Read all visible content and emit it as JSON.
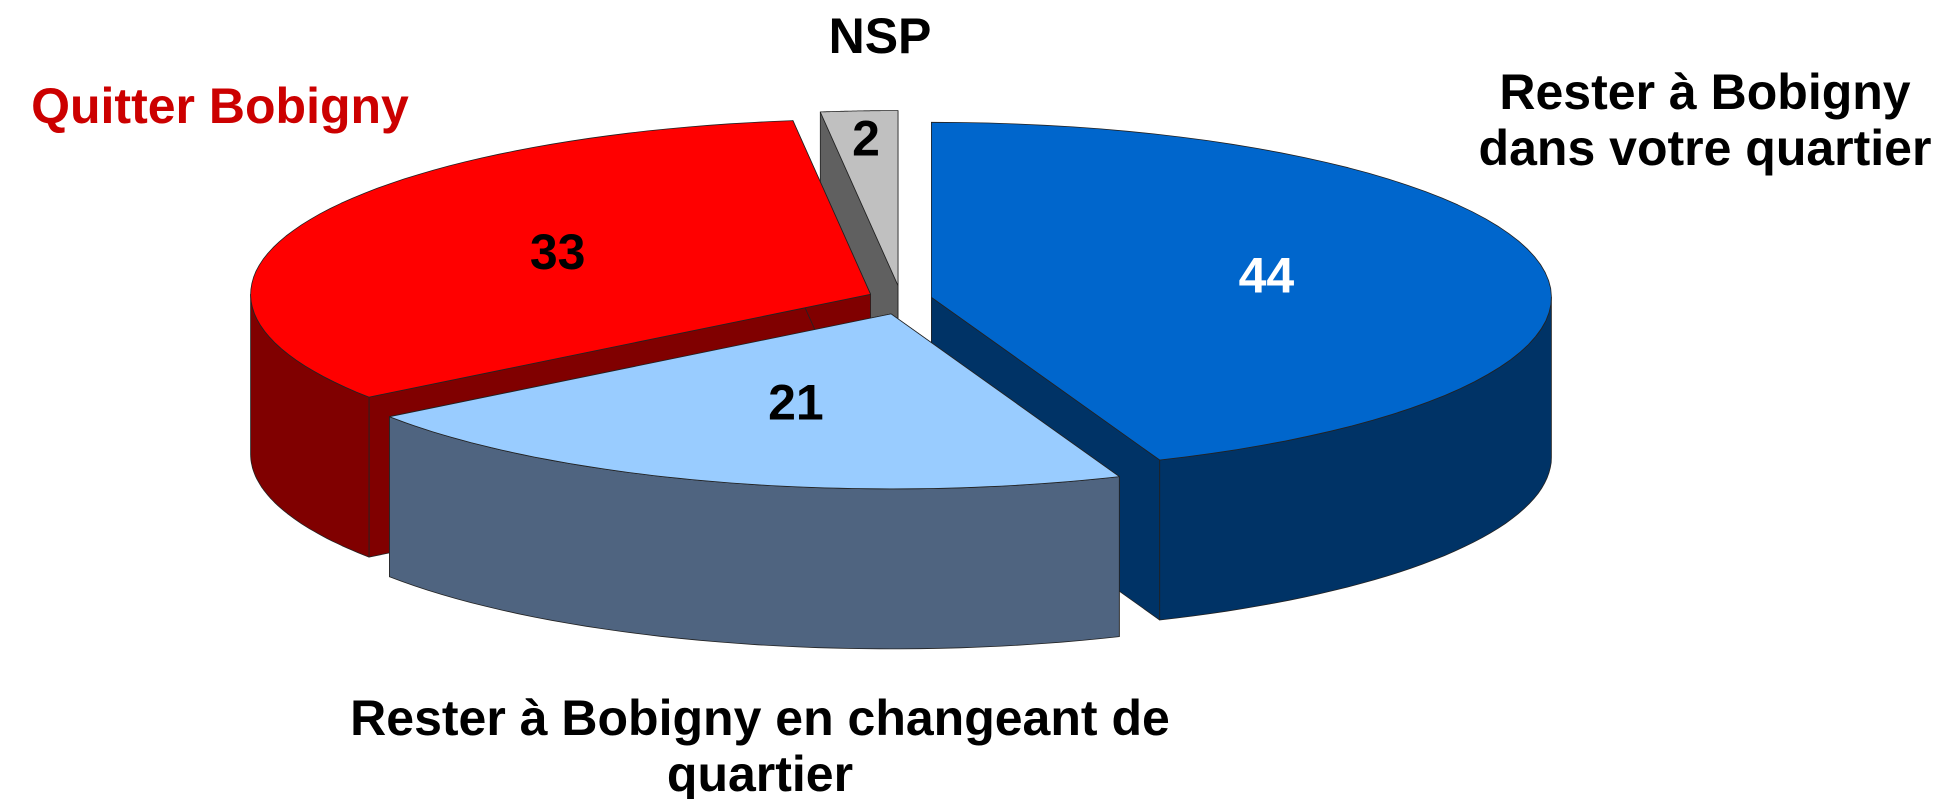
{
  "chart_data": {
    "type": "pie3d",
    "categories": [
      "Rester à Bobigny dans votre quartier",
      "Rester à Bobigny en changeant de quartier",
      "Quitter Bobigny",
      "NSP"
    ],
    "values": [
      44,
      21,
      33,
      2
    ],
    "colors": [
      "#0066cc",
      "#99ccff",
      "#ff0000",
      "#c0c0c0"
    ],
    "side_colors": [
      "#003366",
      "#4f6480",
      "#800000",
      "#606060"
    ],
    "label_colors": [
      "#000000",
      "#000000",
      "#cc0000",
      "#000000"
    ],
    "value_label_colors": [
      "#ffffff",
      "#000000",
      "#000000",
      "#000000"
    ]
  }
}
